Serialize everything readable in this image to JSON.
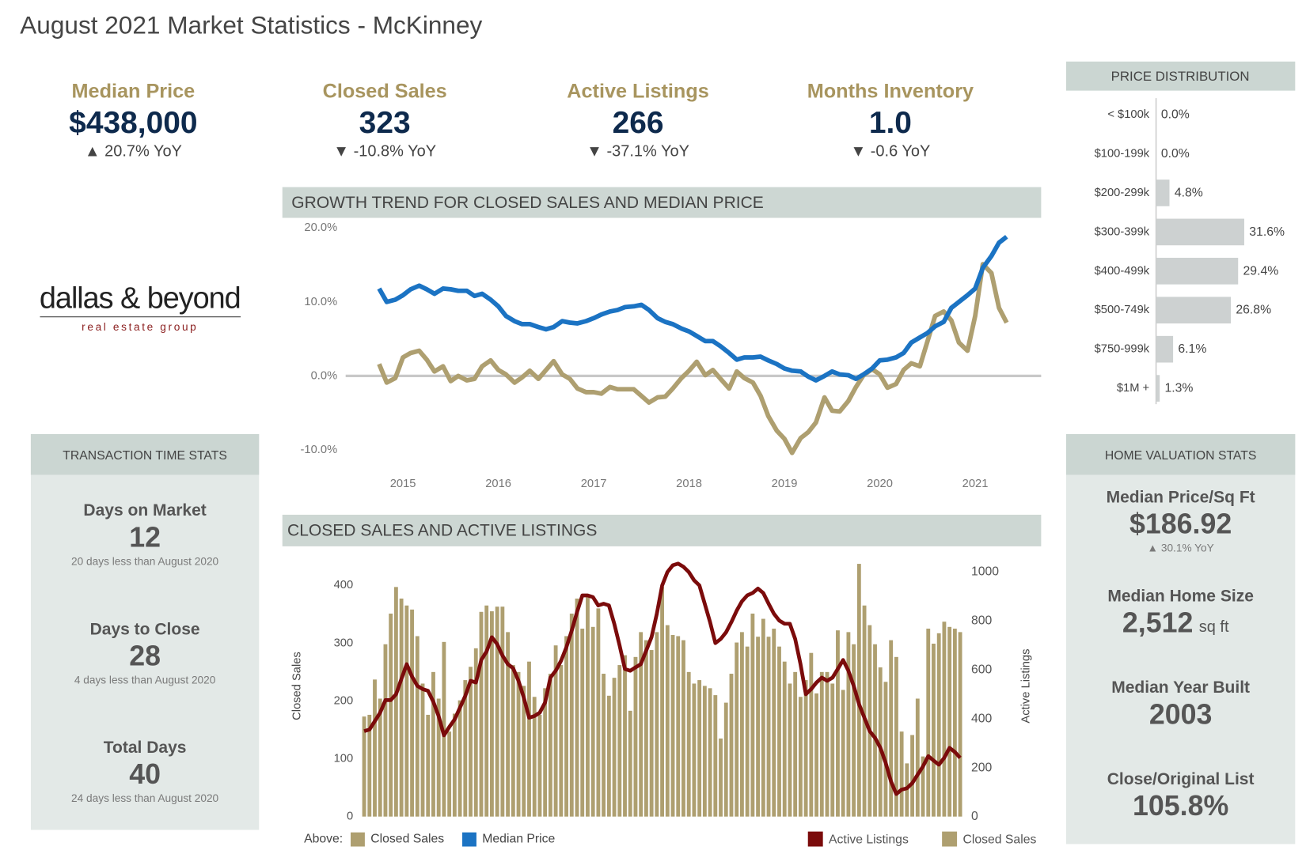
{
  "title": "August 2021 Market Statistics - McKinney",
  "kpis": [
    {
      "label": "Median Price",
      "value": "$438,000",
      "change": "▲ 20.7% YoY"
    },
    {
      "label": "Closed Sales",
      "value": "323",
      "change": "▼ -10.8% YoY"
    },
    {
      "label": "Active Listings",
      "value": "266",
      "change": "▼ -37.1% YoY"
    },
    {
      "label": "Months Inventory",
      "value": "1.0",
      "change": "▼ -0.6 YoY"
    }
  ],
  "logo": {
    "name": "dallas & beyond",
    "tagline": "real estate group"
  },
  "transaction_time_stats": {
    "title": "TRANSACTION TIME STATS",
    "items": [
      {
        "label": "Days on Market",
        "value": "12",
        "note": "20 days less than August 2020"
      },
      {
        "label": "Days to Close",
        "value": "28",
        "note": "4 days less than August 2020"
      },
      {
        "label": "Total Days",
        "value": "40",
        "note": "24 days less than August 2020"
      }
    ]
  },
  "home_valuation_stats": {
    "title": "HOME VALUATION STATS",
    "items": [
      {
        "label": "Median Price/Sq Ft",
        "value": "$186.92",
        "change": "▲ 30.1% YoY"
      },
      {
        "label": "Median Home Size",
        "value": "2,512",
        "unit": "sq ft"
      },
      {
        "label": "Median Year Built",
        "value": "2003"
      },
      {
        "label": "Close/Original List",
        "value": "105.8%"
      }
    ]
  },
  "chart_data": [
    {
      "type": "bar",
      "orientation": "horizontal",
      "title": "PRICE DISTRIBUTION",
      "categories": [
        "< $100k",
        "$100-199k",
        "$200-299k",
        "$300-399k",
        "$400-499k",
        "$500-749k",
        "$750-999k",
        "$1M +"
      ],
      "values": [
        0,
        0,
        4.8,
        31.6,
        29.4,
        26.8,
        6.1,
        1.3
      ],
      "value_labels": [
        "0.0%",
        "0.0%",
        "4.8%",
        "31.6%",
        "29.4%",
        "26.8%",
        "6.1%",
        "1.3%"
      ],
      "color": "#cdd1d1"
    },
    {
      "type": "line",
      "title": "GROWTH TREND FOR CLOSED SALES AND MEDIAN PRICE",
      "legend_title": "Above:",
      "x": [
        2014.75,
        2014.83,
        2014.92,
        2015,
        2015.08,
        2015.17,
        2015.25,
        2015.33,
        2015.42,
        2015.5,
        2015.58,
        2015.67,
        2015.75,
        2015.83,
        2015.92,
        2016,
        2016.08,
        2016.17,
        2016.25,
        2016.33,
        2016.42,
        2016.5,
        2016.58,
        2016.67,
        2016.75,
        2016.83,
        2016.92,
        2017,
        2017.08,
        2017.17,
        2017.25,
        2017.33,
        2017.42,
        2017.5,
        2017.58,
        2017.67,
        2017.75,
        2017.83,
        2017.92,
        2018,
        2018.08,
        2018.17,
        2018.25,
        2018.33,
        2018.42,
        2018.5,
        2018.58,
        2018.67,
        2018.75,
        2018.83,
        2018.92,
        2019,
        2019.08,
        2019.17,
        2019.25,
        2019.33,
        2019.42,
        2019.5,
        2019.58,
        2019.67,
        2019.75,
        2019.83,
        2019.92,
        2020,
        2020.08,
        2020.17,
        2020.25,
        2020.33,
        2020.42,
        2020.5,
        2020.58,
        2020.67,
        2020.75,
        2020.83,
        2020.92,
        2021,
        2021.08,
        2021.17,
        2021.25,
        2021.33
      ],
      "series": [
        {
          "name": "Closed Sales",
          "color": "#ae9f70",
          "values": [
            1.6,
            -0.9,
            -0.3,
            2.5,
            3.1,
            3.4,
            2.2,
            0.6,
            1.3,
            -0.7,
            0.0,
            -0.6,
            -0.4,
            1.3,
            2.1,
            0.8,
            0.2,
            -0.9,
            -0.2,
            0.7,
            -0.4,
            0.8,
            2.0,
            0.2,
            -0.4,
            -1.7,
            -2.2,
            -2.2,
            -2.4,
            -1.5,
            -1.8,
            -1.8,
            -1.8,
            -2.7,
            -3.6,
            -2.9,
            -2.8,
            -1.7,
            -0.3,
            0.7,
            1.9,
            0.1,
            0.8,
            -0.4,
            -1.7,
            0.6,
            -0.3,
            -0.9,
            -2.7,
            -5.4,
            -7.4,
            -8.5,
            -10.4,
            -8.4,
            -7.6,
            -6.3,
            -2.9,
            -4.7,
            -4.8,
            -3.4,
            -1.5,
            0.1,
            0.9,
            0.2,
            -1.6,
            -1.1,
            0.8,
            1.7,
            1.3,
            4.7,
            8.1,
            8.7,
            7.5,
            4.5,
            3.4,
            8.1,
            15.1,
            13.9,
            9.2,
            7.2
          ]
        },
        {
          "name": "Median Price",
          "color": "#1b73c3",
          "values": [
            11.8,
            10.0,
            10.3,
            10.9,
            11.7,
            12.2,
            11.7,
            11.1,
            11.8,
            11.7,
            11.5,
            11.5,
            10.8,
            11.1,
            10.3,
            9.4,
            8.1,
            7.4,
            7.0,
            7.0,
            6.6,
            6.3,
            6.6,
            7.4,
            7.2,
            7.1,
            7.4,
            7.8,
            8.3,
            8.7,
            8.9,
            9.3,
            9.4,
            9.6,
            8.9,
            7.8,
            7.3,
            7.0,
            6.4,
            6.0,
            5.4,
            4.7,
            4.7,
            4.0,
            3.1,
            2.2,
            2.5,
            2.5,
            2.6,
            2.1,
            1.6,
            1.0,
            0.7,
            0.6,
            -0.1,
            -0.6,
            0.0,
            0.6,
            0.2,
            0.1,
            -0.4,
            0.2,
            1.0,
            2.1,
            2.2,
            2.5,
            3.1,
            4.5,
            5.2,
            5.8,
            6.7,
            7.3,
            9.2,
            10.0,
            10.9,
            11.8,
            14.6,
            16.2,
            18.0,
            18.8
          ]
        }
      ],
      "xlim": [
        2014.6,
        2021.6
      ],
      "xticks": [
        2015,
        2016,
        2017,
        2018,
        2019,
        2020,
        2021
      ],
      "ylim": [
        -11.5,
        20.5
      ],
      "yticks": [
        {
          "value": 20,
          "label": "20.0%"
        },
        {
          "value": 10,
          "label": "10.0%"
        },
        {
          "value": 0,
          "label": "0.0%"
        },
        {
          "value": -10,
          "label": "-10.0%"
        }
      ],
      "zero_line": true
    },
    {
      "type": "combo",
      "title": "CLOSED SALES AND ACTIVE LISTINGS",
      "ylabel": "Closed Sales",
      "y2label": "Active Listings",
      "series": [
        {
          "name": "Active Listings",
          "type": "line",
          "axis": "y2",
          "color": "#7b0b0b",
          "values": [
            349,
            356,
            390,
            425,
            476,
            476,
            500,
            562,
            623,
            572,
            534,
            521,
            514,
            469,
            411,
            332,
            366,
            397,
            445,
            493,
            555,
            548,
            640,
            675,
            733,
            705,
            658,
            623,
            606,
            555,
            486,
            404,
            411,
            425,
            466,
            568,
            596,
            637,
            692,
            760,
            836,
            904,
            904,
            897,
            863,
            870,
            863,
            788,
            699,
            603,
            596,
            610,
            623,
            678,
            733,
            829,
            945,
            1000,
            1027,
            1034,
            1021,
            1000,
            966,
            945,
            870,
            795,
            709,
            726,
            753,
            795,
            842,
            880,
            904,
            914,
            932,
            914,
            870,
            829,
            801,
            788,
            788,
            726,
            623,
            500,
            521,
            548,
            568,
            555,
            568,
            603,
            640,
            596,
            534,
            459,
            404,
            349,
            322,
            281,
            219,
            144,
            92,
            110,
            116,
            137,
            171,
            205,
            247,
            229,
            212,
            240,
            281,
            264,
            240
          ]
        },
        {
          "name": "Closed Sales",
          "type": "bar",
          "axis": "y",
          "color": "#ae9f70",
          "values": [
            173,
            176,
            237,
            204,
            298,
            351,
            397,
            377,
            365,
            358,
            312,
            230,
            176,
            250,
            204,
            302,
            147,
            178,
            201,
            236,
            259,
            291,
            354,
            365,
            355,
            363,
            363,
            319,
            262,
            250,
            226,
            268,
            207,
            176,
            222,
            247,
            296,
            262,
            312,
            351,
            377,
            325,
            383,
            328,
            360,
            247,
            209,
            240,
            262,
            279,
            183,
            276,
            319,
            305,
            288,
            319,
            397,
            331,
            314,
            312,
            305,
            250,
            230,
            236,
            226,
            222,
            210,
            135,
            197,
            247,
            301,
            319,
            294,
            351,
            311,
            342,
            311,
            325,
            294,
            268,
            230,
            250,
            207,
            236,
            283,
            213,
            250,
            250,
            230,
            322,
            219,
            319,
            298,
            437,
            365,
            331,
            298,
            258,
            233,
            305,
            276,
            147,
            92,
            141,
            204,
            104,
            325,
            299,
            317,
            337,
            328,
            325,
            319
          ]
        }
      ],
      "ylim": [
        0,
        440
      ],
      "yticks": [
        0,
        100,
        200,
        300,
        400
      ],
      "y2lim": [
        0,
        1040
      ],
      "y2ticks": [
        0,
        200,
        400,
        600,
        800,
        1000
      ]
    }
  ]
}
